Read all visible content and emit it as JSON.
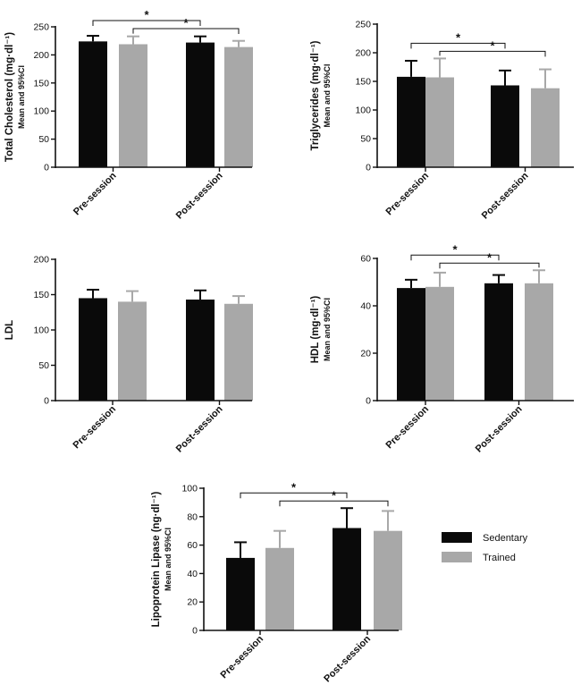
{
  "colors": {
    "sedentary": "#0a0a0a",
    "trained": "#a8a8a8",
    "axis": "#111111"
  },
  "legend": [
    {
      "name": "Sedentary",
      "color": "#0a0a0a"
    },
    {
      "name": "Trained",
      "color": "#a8a8a8"
    }
  ],
  "chart_data": [
    {
      "type": "bar",
      "ylabel": "Total Cholesterol (mg·dl⁻¹)",
      "ylabel_sub": "Mean and 95%CI",
      "categories": [
        "Pre-session",
        "Post-session"
      ],
      "ylim": [
        0,
        250
      ],
      "yticks": [
        0,
        50,
        100,
        150,
        200,
        250
      ],
      "series": [
        {
          "name": "Sedentary",
          "values": [
            224,
            222
          ],
          "ci_upper": [
            234,
            233
          ]
        },
        {
          "name": "Trained",
          "values": [
            219,
            214
          ],
          "ci_upper": [
            233,
            225
          ]
        }
      ],
      "significance": [
        {
          "from": [
            0,
            0
          ],
          "to": [
            1,
            0
          ],
          "label": "*"
        },
        {
          "from": [
            0,
            1
          ],
          "to": [
            1,
            1
          ],
          "label": "*"
        }
      ]
    },
    {
      "type": "bar",
      "ylabel": "Triglycerides (mg·dl⁻¹)",
      "ylabel_sub": "Mean and 95%CI",
      "categories": [
        "Pre-session",
        "Post-session"
      ],
      "ylim": [
        0,
        250
      ],
      "yticks": [
        0,
        50,
        100,
        150,
        200,
        250
      ],
      "series": [
        {
          "name": "Sedentary",
          "values": [
            158,
            143
          ],
          "ci_upper": [
            186,
            169
          ]
        },
        {
          "name": "Trained",
          "values": [
            157,
            138
          ],
          "ci_upper": [
            190,
            171
          ]
        }
      ],
      "significance": [
        {
          "from": [
            0,
            0
          ],
          "to": [
            1,
            0
          ],
          "label": "*"
        },
        {
          "from": [
            0,
            1
          ],
          "to": [
            1,
            1
          ],
          "label": "*"
        }
      ]
    },
    {
      "type": "bar",
      "ylabel": "LDL",
      "ylabel_sub": "",
      "categories": [
        "Pre-session",
        "Post-session"
      ],
      "ylim": [
        0,
        200
      ],
      "yticks": [
        0,
        50,
        100,
        150,
        200
      ],
      "series": [
        {
          "name": "Sedentary",
          "values": [
            145,
            143
          ],
          "ci_upper": [
            157,
            156
          ]
        },
        {
          "name": "Trained",
          "values": [
            140,
            137
          ],
          "ci_upper": [
            155,
            148
          ]
        }
      ],
      "significance": []
    },
    {
      "type": "bar",
      "ylabel": "HDL (mg·dl⁻¹)",
      "ylabel_sub": "Mean and 95%CI",
      "categories": [
        "Pre-session",
        "Post-session"
      ],
      "ylim": [
        0,
        60
      ],
      "yticks": [
        0,
        20,
        40,
        60
      ],
      "series": [
        {
          "name": "Sedentary",
          "values": [
            47.5,
            49.5
          ],
          "ci_upper": [
            51,
            53
          ]
        },
        {
          "name": "Trained",
          "values": [
            48,
            49.5
          ],
          "ci_upper": [
            54,
            55
          ]
        }
      ],
      "significance": [
        {
          "from": [
            0,
            0
          ],
          "to": [
            1,
            0
          ],
          "label": "*"
        },
        {
          "from": [
            0,
            1
          ],
          "to": [
            1,
            1
          ],
          "label": "*"
        }
      ]
    },
    {
      "type": "bar",
      "ylabel": "Lipoprotein Lipase (ng·dl⁻¹)",
      "ylabel_sub": "Mean and 95%CI",
      "categories": [
        "Pre-session",
        "Post-session"
      ],
      "ylim": [
        0,
        100
      ],
      "yticks": [
        0,
        20,
        40,
        60,
        80,
        100
      ],
      "series": [
        {
          "name": "Sedentary",
          "values": [
            51,
            72
          ],
          "ci_upper": [
            62,
            86
          ]
        },
        {
          "name": "Trained",
          "values": [
            58,
            70
          ],
          "ci_upper": [
            70,
            84
          ]
        }
      ],
      "significance": [
        {
          "from": [
            0,
            0
          ],
          "to": [
            1,
            0
          ],
          "label": "*"
        },
        {
          "from": [
            0,
            1
          ],
          "to": [
            1,
            1
          ],
          "label": "*"
        }
      ]
    }
  ]
}
